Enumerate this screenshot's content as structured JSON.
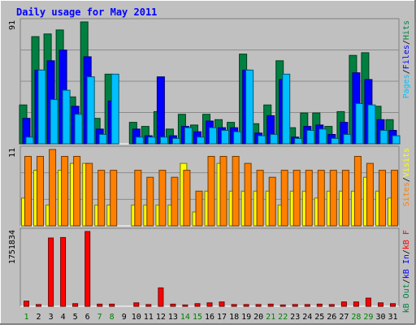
{
  "title": "Daily usage for May 2011",
  "colors": {
    "background": "#C0C0C0",
    "title": "#0000FF",
    "hits": "#008040",
    "files": "#0000FF",
    "pages": "#00C0FF",
    "visits": "#FFFF00",
    "sites": "#FF8000",
    "kb_in": "#0000FF",
    "kb_out": "#008040",
    "kb_f": "#FF0000",
    "weekend_label": "#008000",
    "weekday_label": "#000000"
  },
  "chart_data": [
    {
      "type": "bar",
      "panel": "hits-files-pages",
      "ymax_label": "91",
      "ylim": [
        0,
        91
      ],
      "legend": [
        {
          "text": "Hits",
          "color_key": "hits"
        },
        {
          "text": "Files",
          "color_key": "files"
        },
        {
          "text": "Pages",
          "color_key": "pages"
        }
      ],
      "categories": [
        "1",
        "2",
        "3",
        "4",
        "5",
        "6",
        "7",
        "8",
        "9",
        "10",
        "11",
        "12",
        "13",
        "14",
        "15",
        "16",
        "17",
        "18",
        "19",
        "20",
        "21",
        "22",
        "23",
        "24",
        "25",
        "26",
        "27",
        "28",
        "29",
        "30",
        "31"
      ],
      "weekend": [
        1,
        7,
        8,
        14,
        15,
        21,
        22,
        28,
        29
      ],
      "series": [
        {
          "name": "Hits",
          "color_key": "hits",
          "values": [
            29,
            80,
            82,
            85,
            35,
            91,
            19,
            52,
            0,
            16,
            13,
            24,
            11,
            22,
            14,
            22,
            18,
            16,
            67,
            15,
            29,
            62,
            12,
            23,
            23,
            13,
            24,
            66,
            68,
            28,
            18
          ]
        },
        {
          "name": "Files",
          "color_key": "files",
          "values": [
            19,
            55,
            62,
            70,
            28,
            65,
            11,
            32,
            0,
            11,
            6,
            50,
            6,
            13,
            9,
            17,
            12,
            12,
            55,
            8,
            21,
            48,
            5,
            13,
            14,
            7,
            16,
            53,
            48,
            18,
            10
          ]
        },
        {
          "name": "Pages",
          "color_key": "pages",
          "values": [
            5,
            55,
            33,
            40,
            22,
            50,
            7,
            52,
            0,
            5,
            5,
            5,
            4,
            12,
            5,
            12,
            10,
            9,
            55,
            6,
            7,
            52,
            4,
            10,
            11,
            4,
            7,
            30,
            29,
            10,
            6
          ]
        }
      ]
    },
    {
      "type": "bar",
      "panel": "visits-sites",
      "ymax_label": "11",
      "ylim": [
        0,
        11
      ],
      "legend": [
        {
          "text": "Visits",
          "color_key": "visits"
        },
        {
          "text": "Sites",
          "color_key": "sites"
        }
      ],
      "categories": [
        "1",
        "2",
        "3",
        "4",
        "5",
        "6",
        "7",
        "8",
        "9",
        "10",
        "11",
        "12",
        "13",
        "14",
        "15",
        "16",
        "17",
        "18",
        "19",
        "20",
        "21",
        "22",
        "23",
        "24",
        "25",
        "26",
        "27",
        "28",
        "29",
        "30",
        "31"
      ],
      "series": [
        {
          "name": "Visits",
          "color_key": "visits",
          "values": [
            4,
            8,
            3,
            8,
            9,
            9,
            3,
            3,
            0,
            3,
            3,
            3,
            3,
            9,
            2,
            5,
            9,
            5,
            5,
            5,
            5,
            3,
            5,
            5,
            4,
            5,
            5,
            5,
            7,
            5,
            4
          ]
        },
        {
          "name": "Sites",
          "color_key": "sites",
          "values": [
            10,
            10,
            11,
            10,
            10,
            9,
            8,
            8,
            0,
            8,
            7,
            8,
            7,
            8,
            5,
            10,
            10,
            10,
            9,
            8,
            7,
            8,
            8,
            8,
            8,
            8,
            8,
            10,
            9,
            8,
            8
          ]
        }
      ]
    },
    {
      "type": "bar",
      "panel": "kbytes",
      "ymax_label": "1751834",
      "ylim": [
        0,
        1751834
      ],
      "legend": [
        {
          "text": "kB F",
          "color_key": "kb_f"
        },
        {
          "text": "kB In",
          "color_key": "kb_in"
        },
        {
          "text": "kB Out",
          "color_key": "kb_out"
        }
      ],
      "categories": [
        "1",
        "2",
        "3",
        "4",
        "5",
        "6",
        "7",
        "8",
        "9",
        "10",
        "11",
        "12",
        "13",
        "14",
        "15",
        "16",
        "17",
        "18",
        "19",
        "20",
        "21",
        "22",
        "23",
        "24",
        "25",
        "26",
        "27",
        "28",
        "29",
        "30",
        "31"
      ],
      "series": [
        {
          "name": "kB F",
          "color_key": "kb_f",
          "values": [
            120000,
            40000,
            1600000,
            1610000,
            60000,
            1751834,
            50000,
            50000,
            0,
            80000,
            40000,
            430000,
            50000,
            30000,
            60000,
            80000,
            100000,
            40000,
            40000,
            40000,
            50000,
            30000,
            40000,
            40000,
            50000,
            40000,
            100000,
            100000,
            190000,
            80000,
            60000
          ]
        }
      ]
    }
  ]
}
